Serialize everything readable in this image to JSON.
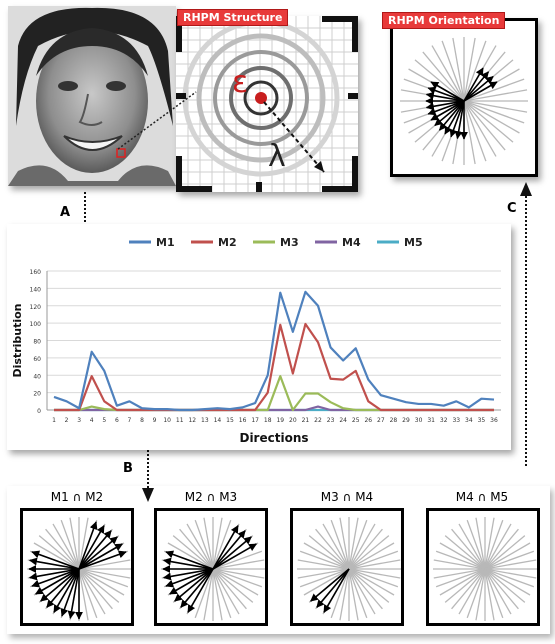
{
  "structure_tag": "RHPM Structure",
  "orientation_tag": "RHPM Orientation",
  "symbols": {
    "epsilon": "ε",
    "lambda": "λ"
  },
  "steps": {
    "a": "A",
    "b": "B",
    "c": "C"
  },
  "colors": {
    "tag": "#e83a3a",
    "m1": "#4f81bd",
    "m2": "#c0504d",
    "m3": "#9bbb59",
    "m4": "#8064a2",
    "m5": "#4bacc6"
  },
  "intersections": [
    {
      "label": "M1 ∩ M2"
    },
    {
      "label": "M2 ∩ M3"
    },
    {
      "label": "M3 ∩ M4"
    },
    {
      "label": "M4 ∩ M5"
    }
  ],
  "chart_data": {
    "type": "line",
    "title": "",
    "xlabel": "Directions",
    "ylabel": "Distribution",
    "ylim": [
      0,
      160
    ],
    "yticks": [
      "0",
      "20",
      "40",
      "60",
      "80",
      "100",
      "120",
      "140",
      "160"
    ],
    "categories": [
      "1",
      "2",
      "3",
      "4",
      "5",
      "6",
      "7",
      "8",
      "9",
      "10",
      "11",
      "12",
      "13",
      "14",
      "15",
      "16",
      "17",
      "18",
      "19",
      "20",
      "21",
      "22",
      "23",
      "24",
      "25",
      "26",
      "27",
      "28",
      "29",
      "30",
      "31",
      "32",
      "33",
      "34",
      "35",
      "36"
    ],
    "legend_position": "top",
    "grid": true,
    "series": [
      {
        "name": "M1",
        "color": "#4f81bd",
        "values": [
          15,
          10,
          2,
          67,
          45,
          5,
          10,
          2,
          1,
          1,
          0,
          0,
          1,
          2,
          1,
          3,
          8,
          40,
          135,
          90,
          136,
          120,
          72,
          57,
          71,
          35,
          17,
          13,
          9,
          7,
          7,
          5,
          10,
          3,
          13,
          12
        ]
      },
      {
        "name": "M2",
        "color": "#c0504d",
        "values": [
          0,
          0,
          0,
          39,
          10,
          0,
          0,
          0,
          0,
          0,
          0,
          0,
          0,
          0,
          0,
          0,
          0,
          20,
          98,
          42,
          99,
          78,
          36,
          35,
          45,
          10,
          0,
          0,
          0,
          0,
          0,
          0,
          0,
          0,
          0,
          0
        ]
      },
      {
        "name": "M3",
        "color": "#9bbb59",
        "values": [
          0,
          0,
          0,
          4,
          1,
          0,
          0,
          0,
          0,
          0,
          0,
          0,
          0,
          0,
          0,
          0,
          0,
          0,
          39,
          0,
          19,
          19,
          9,
          2,
          0,
          0,
          0,
          0,
          0,
          0,
          0,
          0,
          0,
          0,
          0,
          0
        ]
      },
      {
        "name": "M4",
        "color": "#8064a2",
        "values": [
          0,
          0,
          0,
          0,
          0,
          0,
          0,
          0,
          0,
          0,
          0,
          0,
          0,
          0,
          0,
          0,
          0,
          0,
          0,
          0,
          0,
          4,
          0,
          0,
          0,
          0,
          0,
          0,
          0,
          0,
          0,
          0,
          0,
          0,
          0,
          0
        ]
      },
      {
        "name": "M5",
        "color": "#4bacc6",
        "values": [
          0,
          0,
          0,
          0,
          0,
          0,
          0,
          0,
          0,
          0,
          0,
          0,
          0,
          0,
          0,
          0,
          0,
          0,
          0,
          0,
          0,
          0,
          0,
          0,
          0,
          0,
          0,
          0,
          0,
          0,
          0,
          0,
          0,
          0,
          0,
          0
        ]
      }
    ]
  }
}
